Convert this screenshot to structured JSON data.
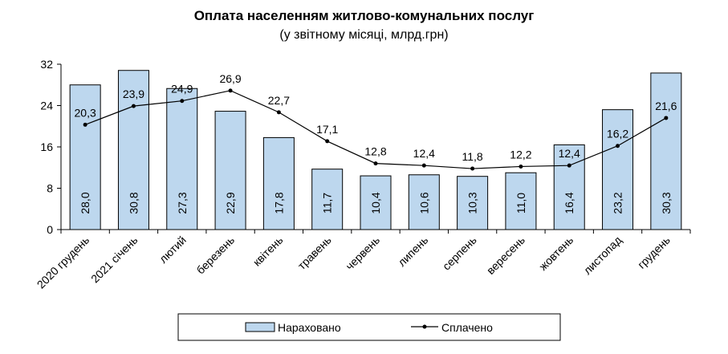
{
  "chart_data": {
    "type": "bar",
    "title": "Оплата населенням житлово-комунальних послуг",
    "subtitle": "(у звітному місяці, млрд.грн)",
    "categories": [
      "2020 грудень",
      "2021 січень",
      "лютий",
      "березень",
      "квітень",
      "травень",
      "червень",
      "липень",
      "серпень",
      "вересень",
      "жовтень",
      "листопад",
      "грудень"
    ],
    "series": [
      {
        "name": "Нараховано",
        "type": "bar",
        "color": "#bdd7ee",
        "values": [
          28.0,
          30.8,
          27.3,
          22.9,
          17.8,
          11.7,
          10.4,
          10.6,
          10.3,
          11.0,
          16.4,
          23.2,
          30.3
        ],
        "labels": [
          "28,0",
          "30,8",
          "27,3",
          "22,9",
          "17,8",
          "11,7",
          "10,4",
          "10,6",
          "10,3",
          "11,0",
          "16,4",
          "23,2",
          "30,3"
        ]
      },
      {
        "name": "Сплачено",
        "type": "line",
        "color": "#000000",
        "values": [
          20.3,
          23.9,
          24.9,
          26.9,
          22.7,
          17.1,
          12.8,
          12.4,
          11.8,
          12.2,
          12.4,
          16.2,
          21.6
        ],
        "labels": [
          "20,3",
          "23,9",
          "24,9",
          "26,9",
          "22,7",
          "17,1",
          "12,8",
          "12,4",
          "11,8",
          "12,2",
          "12,4",
          "16,2",
          "21,6"
        ]
      }
    ],
    "yticks": [
      "0",
      "8",
      "16",
      "24",
      "32"
    ],
    "ylim": [
      0,
      32
    ],
    "grid": false,
    "legend": "bottom"
  }
}
